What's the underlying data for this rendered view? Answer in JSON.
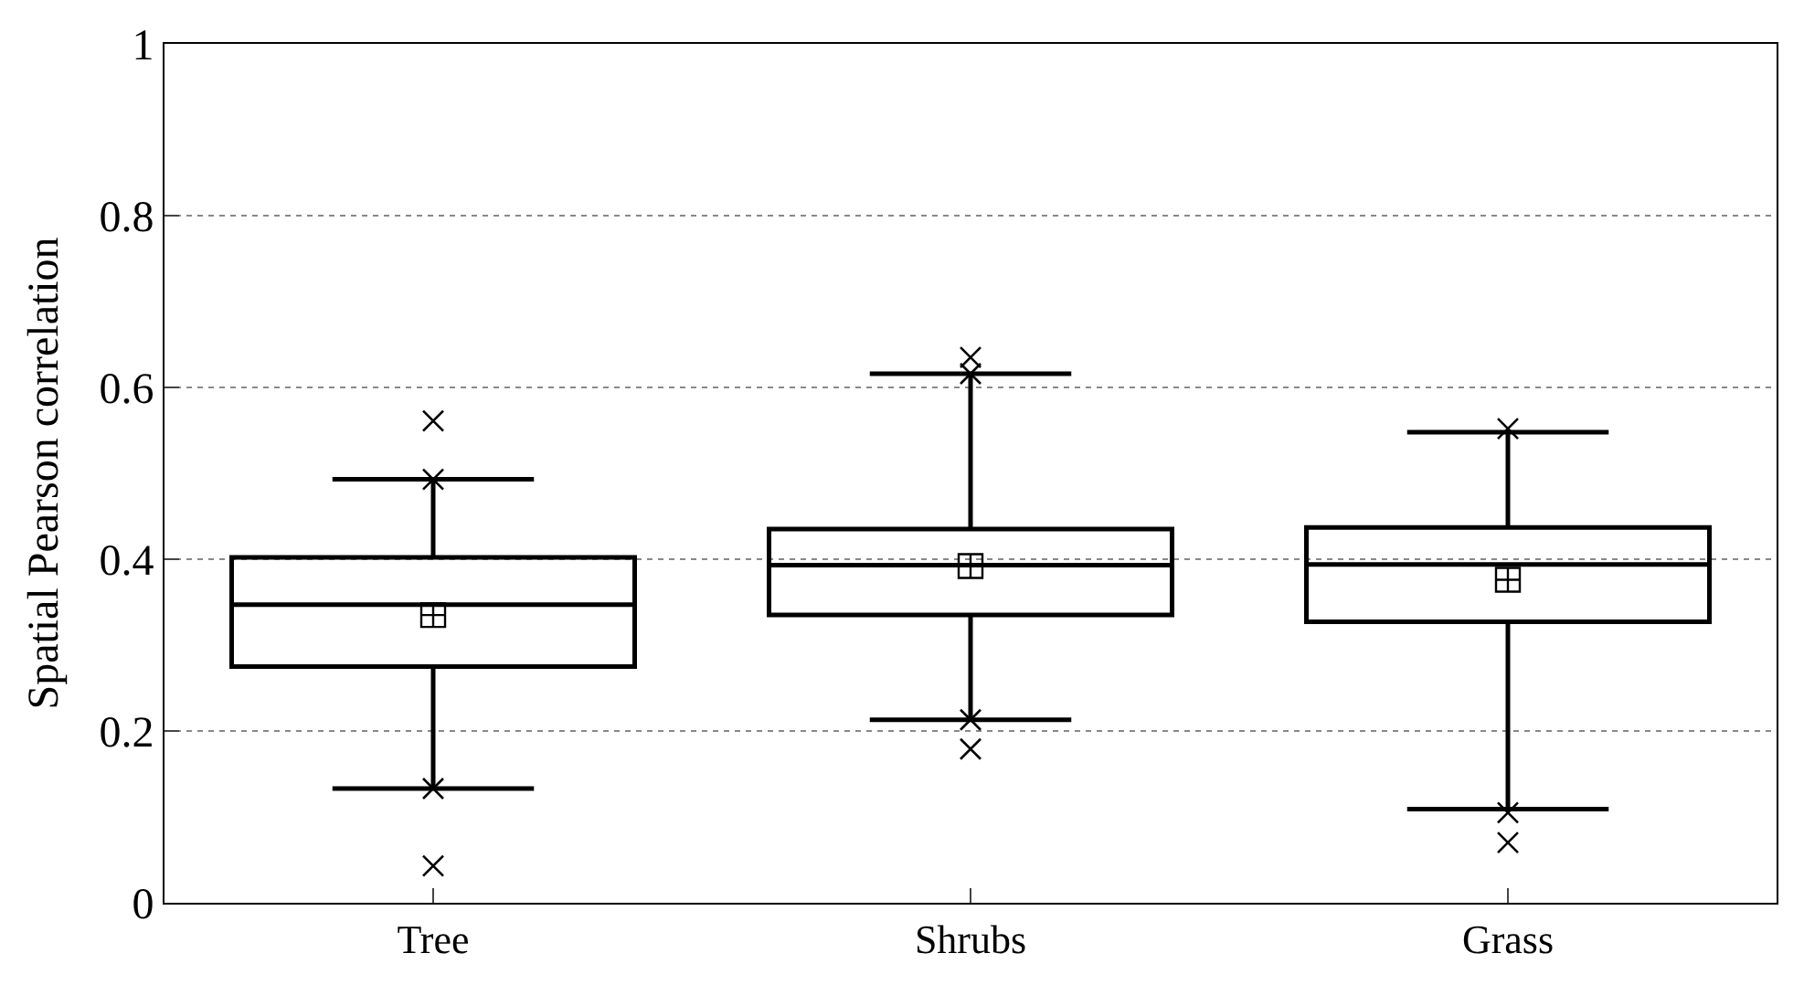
{
  "chart_data": {
    "type": "box",
    "ylabel": "Spatial Pearson correlation",
    "categories": [
      "Tree",
      "Shrubs",
      "Grass"
    ],
    "boxes": [
      {
        "low": 0.133,
        "q1": 0.275,
        "median": 0.347,
        "q3": 0.402,
        "high": 0.493,
        "mean": 0.335,
        "outliers": [
          0.561,
          0.493,
          0.133,
          0.043
        ]
      },
      {
        "low": 0.213,
        "q1": 0.335,
        "median": 0.393,
        "q3": 0.435,
        "high": 0.616,
        "mean": 0.392,
        "outliers": [
          0.635,
          0.616,
          0.213,
          0.179
        ]
      },
      {
        "low": 0.109,
        "q1": 0.327,
        "median": 0.394,
        "q3": 0.437,
        "high": 0.548,
        "mean": 0.376,
        "outliers": [
          0.552,
          0.105,
          0.07
        ]
      }
    ],
    "color": "#000000",
    "ylim": [
      0,
      1
    ],
    "yticks": [
      0,
      0.2,
      0.4,
      0.6,
      0.8,
      1
    ],
    "grid": "y"
  }
}
